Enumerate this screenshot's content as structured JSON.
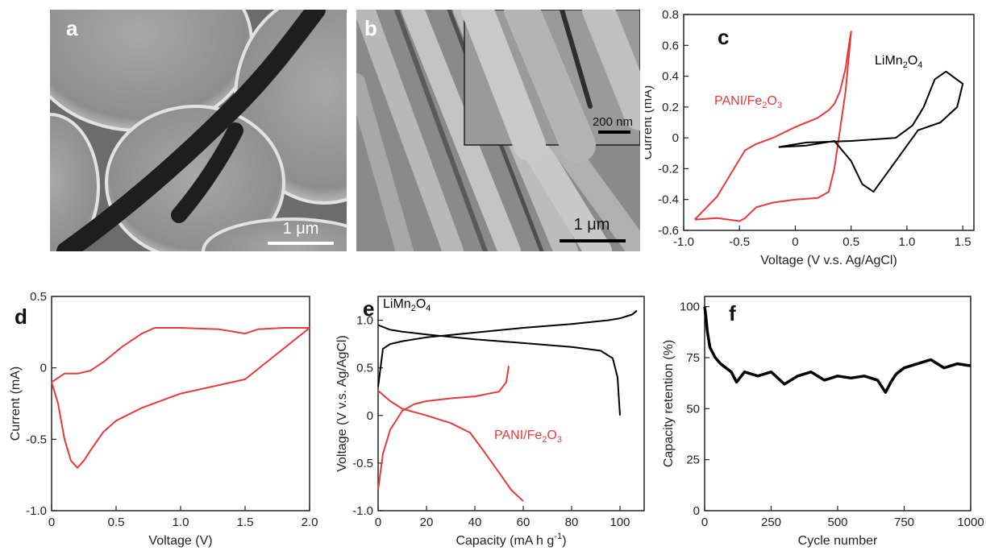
{
  "panels": {
    "a": {
      "label": "a",
      "scalebar": "1 μm"
    },
    "b": {
      "label": "b",
      "scalebar": "1 μm",
      "inset_scalebar": "200 nm"
    },
    "c": {
      "label": "c"
    },
    "d": {
      "label": "d"
    },
    "e": {
      "label": "e"
    },
    "f": {
      "label": "f"
    }
  },
  "colors": {
    "red": "#e8393a",
    "black": "#000000"
  },
  "chart_data": [
    {
      "id": "c",
      "type": "line",
      "xlabel": "Voltage (V v.s. Ag/AgCl)",
      "ylabel": "Current (mA)",
      "xlim": [
        -1.0,
        1.6
      ],
      "ylim": [
        -0.6,
        0.8
      ],
      "xticks": [
        "-1.0",
        "-0.5",
        "0",
        "0.5",
        "1.0",
        "1.5"
      ],
      "yticks": [
        "-0.6",
        "-0.4",
        "-0.2",
        "0",
        "0.2",
        "0.4",
        "0.6",
        "0.8"
      ],
      "series": [
        {
          "name": "PANI/Fe2O3",
          "color": "#e8393a",
          "x": [
            -0.9,
            -0.7,
            -0.5,
            -0.45,
            -0.35,
            -0.2,
            0.0,
            0.2,
            0.3,
            0.35,
            0.45,
            0.5,
            0.48,
            0.45,
            0.4,
            0.35,
            0.3,
            0.2,
            0.0,
            -0.2,
            -0.35,
            -0.45,
            -0.55,
            -0.7,
            -0.9
          ],
          "y": [
            -0.53,
            -0.52,
            -0.54,
            -0.52,
            -0.45,
            -0.42,
            -0.4,
            -0.39,
            -0.35,
            -0.2,
            0.3,
            0.69,
            0.6,
            0.45,
            0.3,
            0.22,
            0.18,
            0.13,
            0.07,
            0.0,
            -0.04,
            -0.08,
            -0.2,
            -0.38,
            -0.53
          ]
        },
        {
          "name": "LiMn2O4",
          "color": "#000000",
          "x": [
            -0.15,
            0.1,
            0.5,
            0.9,
            1.05,
            1.15,
            1.25,
            1.35,
            1.5,
            1.45,
            1.3,
            1.1,
            0.9,
            0.75,
            0.7,
            0.6,
            0.5,
            0.35,
            0.1,
            -0.15
          ],
          "y": [
            -0.06,
            -0.03,
            -0.02,
            0.0,
            0.08,
            0.2,
            0.38,
            0.43,
            0.35,
            0.2,
            0.1,
            0.05,
            -0.15,
            -0.3,
            -0.35,
            -0.3,
            -0.15,
            -0.02,
            -0.05,
            -0.06
          ]
        }
      ],
      "annotations": [
        {
          "text": "PANI/Fe",
          "sub": "2",
          "text2": "O",
          "sub2": "3",
          "color": "#e8393a"
        },
        {
          "text": "LiMn",
          "sub": "2",
          "text2": "O",
          "sub2": "4",
          "color": "#000000"
        }
      ]
    },
    {
      "id": "d",
      "type": "line",
      "xlabel": "Voltage (V)",
      "ylabel": "Current (mA)",
      "xlim": [
        0,
        2.0
      ],
      "ylim": [
        -1.0,
        0.5
      ],
      "xticks": [
        "0",
        "0.5",
        "1.0",
        "1.5",
        "2.0"
      ],
      "yticks": [
        "-1.0",
        "-0.5",
        "0",
        "0.5"
      ],
      "series": [
        {
          "color": "#e8393a",
          "x": [
            0,
            0.05,
            0.1,
            0.15,
            0.2,
            0.25,
            0.3,
            0.4,
            0.5,
            0.7,
            1.0,
            1.5,
            2.0,
            1.8,
            1.6,
            1.5,
            1.3,
            1.0,
            0.9,
            0.8,
            0.7,
            0.55,
            0.4,
            0.3,
            0.2,
            0.1,
            0
          ],
          "y": [
            -0.1,
            -0.25,
            -0.5,
            -0.65,
            -0.7,
            -0.65,
            -0.58,
            -0.45,
            -0.37,
            -0.28,
            -0.18,
            -0.08,
            0.28,
            0.28,
            0.27,
            0.24,
            0.27,
            0.28,
            0.28,
            0.28,
            0.24,
            0.15,
            0.04,
            -0.02,
            -0.04,
            -0.04,
            -0.1
          ]
        }
      ]
    },
    {
      "id": "e",
      "type": "line",
      "xlabel": "Capacity (mA h g-1)",
      "ylabel": "Voltage (V v.s. Ag/AgCl)",
      "xlim": [
        0,
        110
      ],
      "ylim": [
        -1.0,
        1.25
      ],
      "xticks": [
        "0",
        "20",
        "40",
        "60",
        "80",
        "100"
      ],
      "yticks": [
        "-1.0",
        "-0.5",
        "0",
        "0.5",
        "1.0"
      ],
      "series": [
        {
          "name": "LiMn2O4 charge",
          "color": "#000000",
          "x": [
            0,
            2,
            5,
            10,
            20,
            40,
            60,
            80,
            95,
            100,
            105,
            107
          ],
          "y": [
            0.3,
            0.7,
            0.75,
            0.78,
            0.82,
            0.87,
            0.92,
            0.96,
            1.0,
            1.02,
            1.06,
            1.1
          ]
        },
        {
          "name": "LiMn2O4 discharge",
          "color": "#000000",
          "x": [
            0,
            5,
            10,
            20,
            40,
            60,
            80,
            92,
            97,
            99,
            100
          ],
          "y": [
            0.95,
            0.9,
            0.88,
            0.85,
            0.8,
            0.76,
            0.72,
            0.68,
            0.6,
            0.4,
            0.0
          ]
        },
        {
          "name": "PANI/Fe2O3 charge",
          "color": "#e8393a",
          "x": [
            0,
            2,
            5,
            10,
            15,
            20,
            30,
            40,
            50,
            53,
            54
          ],
          "y": [
            -0.78,
            -0.4,
            -0.15,
            0.05,
            0.12,
            0.15,
            0.18,
            0.2,
            0.25,
            0.35,
            0.52
          ]
        },
        {
          "name": "PANI/Fe2O3 discharge",
          "color": "#e8393a",
          "x": [
            0,
            5,
            10,
            20,
            30,
            38,
            43,
            50,
            55,
            60
          ],
          "y": [
            0.26,
            0.15,
            0.07,
            0.0,
            -0.08,
            -0.18,
            -0.35,
            -0.6,
            -0.78,
            -0.9
          ]
        }
      ],
      "annotations": [
        {
          "text": "LiMn",
          "sub": "2",
          "text2": "O",
          "sub2": "4",
          "color": "#000000"
        },
        {
          "text": "PANI/Fe",
          "sub": "2",
          "text2": "O",
          "sub2": "3",
          "color": "#e8393a"
        }
      ]
    },
    {
      "id": "f",
      "type": "line",
      "xlabel": "Cycle number",
      "ylabel": "Capacity   retention (%)",
      "xlim": [
        0,
        1000
      ],
      "ylim": [
        0,
        105
      ],
      "xticks": [
        "0",
        "250",
        "500",
        "750",
        "1000"
      ],
      "yticks": [
        "0",
        "25",
        "50",
        "75",
        "100"
      ],
      "series": [
        {
          "color": "#000000",
          "x": [
            0,
            5,
            10,
            20,
            40,
            60,
            100,
            120,
            150,
            200,
            250,
            300,
            350,
            400,
            450,
            500,
            550,
            600,
            650,
            680,
            700,
            720,
            750,
            800,
            850,
            900,
            950,
            1000
          ],
          "y": [
            100,
            95,
            88,
            80,
            75,
            72,
            68,
            63,
            68,
            66,
            68,
            62,
            66,
            68,
            64,
            66,
            65,
            66,
            64,
            58,
            63,
            67,
            70,
            72,
            74,
            70,
            72,
            71
          ]
        }
      ]
    }
  ]
}
